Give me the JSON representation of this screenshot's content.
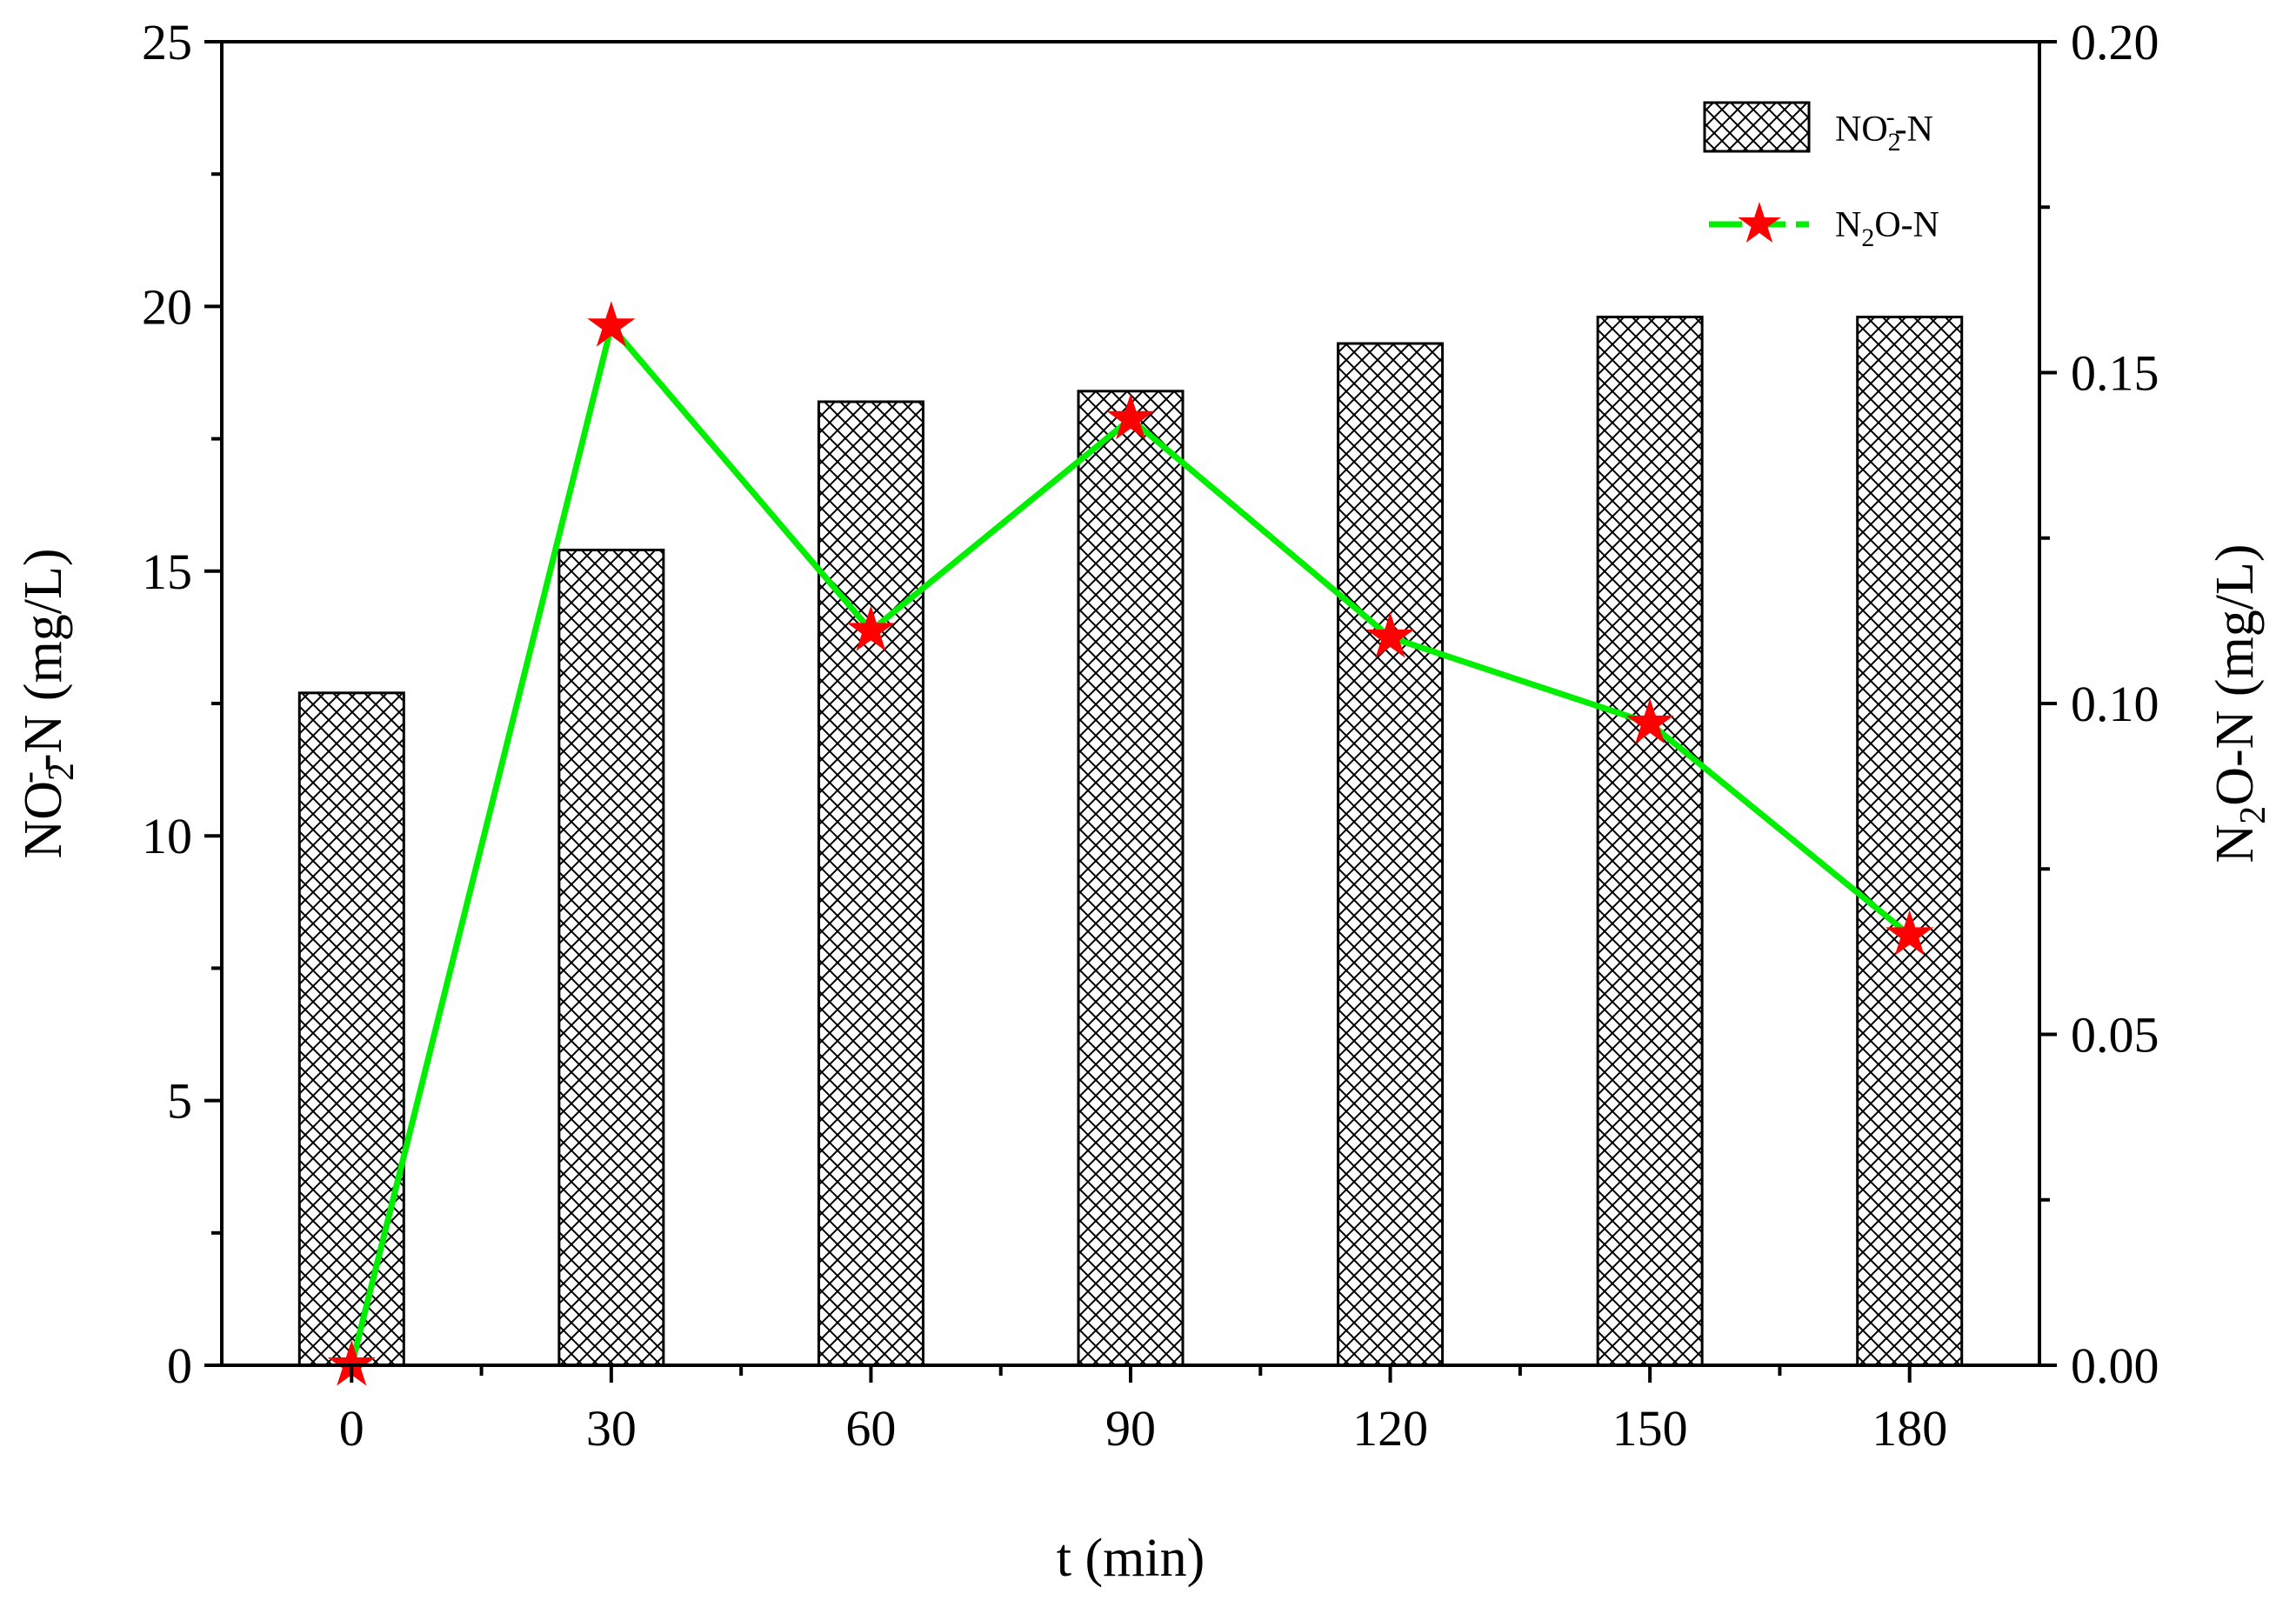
{
  "chart_data": {
    "type": "bar+line",
    "categories": [
      "0",
      "30",
      "60",
      "90",
      "120",
      "150",
      "180"
    ],
    "x": [
      0,
      30,
      60,
      90,
      120,
      150,
      180
    ],
    "series": [
      {
        "name": "NO2- -N",
        "type": "bar",
        "axis": "left",
        "pattern": "crosshatch",
        "values": [
          12.7,
          15.4,
          18.2,
          18.4,
          19.3,
          19.8,
          19.8
        ]
      },
      {
        "name": "N2O-N",
        "type": "line",
        "axis": "right",
        "marker": "star",
        "line_color": "#00ee00",
        "marker_color": "#ff0000",
        "values": [
          0.0,
          0.157,
          0.111,
          0.143,
          0.11,
          0.097,
          0.065
        ]
      }
    ],
    "xlabel": "t (min)",
    "ylabel_left": {
      "main": "NO",
      "sub": "2",
      "sup": "-",
      "rest": "-N (mg/L)"
    },
    "ylabel_right": {
      "main": "N",
      "sub": "2",
      "rest": "O-N (mg/L)"
    },
    "ylim_left": [
      0,
      25
    ],
    "ylim_right": [
      0,
      0.2
    ],
    "yticks_left": [
      "0",
      "5",
      "10",
      "15",
      "20",
      "25"
    ],
    "yticks_right": [
      "0.00",
      "0.05",
      "0.10",
      "0.15",
      "0.20"
    ],
    "legend": {
      "position": "top-right",
      "entries": [
        {
          "main": "NO",
          "sub": "2",
          "sup": "-",
          "rest": "-N"
        },
        {
          "main": "N",
          "sub": "2",
          "rest": "O-N"
        }
      ]
    },
    "grid": false
  }
}
